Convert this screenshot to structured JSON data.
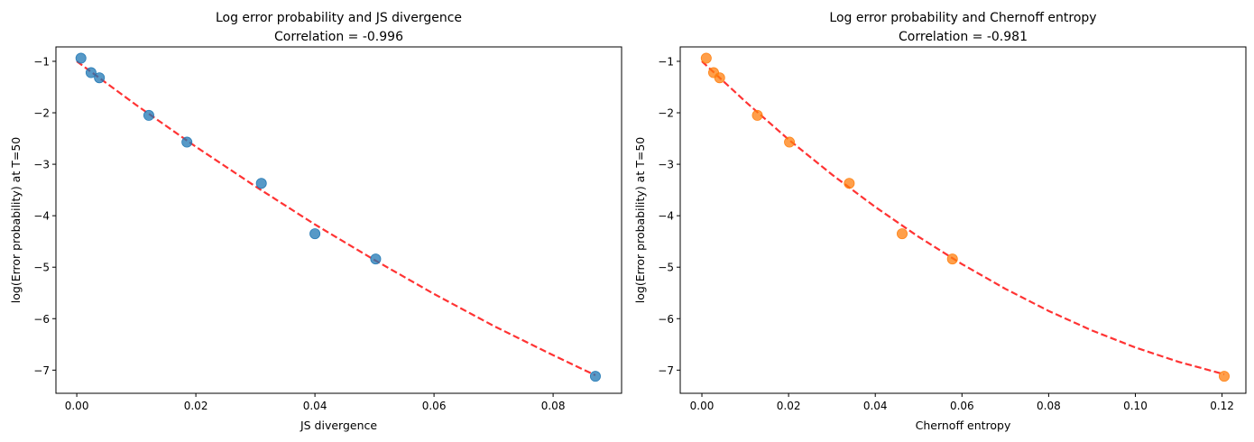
{
  "chart_data": [
    {
      "type": "scatter",
      "title": "Log error probability and JS divergence",
      "subtitle": "Correlation = -0.996",
      "xlabel": "JS divergence",
      "ylabel": "log(Error probability) at T=50",
      "xlim": [
        -0.0035,
        0.0915
      ],
      "ylim": [
        -7.45,
        -0.72
      ],
      "xticks": [
        0.0,
        0.02,
        0.04,
        0.06,
        0.08
      ],
      "xtick_labels": [
        "0.00",
        "0.02",
        "0.04",
        "0.06",
        "0.08"
      ],
      "yticks": [
        -7,
        -6,
        -5,
        -4,
        -3,
        -2,
        -1
      ],
      "ytick_labels": [
        "−7",
        "−6",
        "−5",
        "−4",
        "−3",
        "−2",
        "−1"
      ],
      "grid": false,
      "colors": {
        "points": "#1f77b4",
        "fit": "#ff0000"
      },
      "points": {
        "x": [
          0.0007,
          0.0024,
          0.0038,
          0.0121,
          0.0185,
          0.031,
          0.04,
          0.0502,
          0.0871
        ],
        "y": [
          -0.94,
          -1.22,
          -1.32,
          -2.05,
          -2.57,
          -3.37,
          -4.35,
          -4.84,
          -7.12
        ]
      },
      "fit": {
        "style": "dashed",
        "x": [
          0.0,
          0.01,
          0.02,
          0.03,
          0.04,
          0.05,
          0.06,
          0.07,
          0.08,
          0.0871
        ],
        "y": [
          -1.0,
          -1.85,
          -2.66,
          -3.43,
          -4.17,
          -4.86,
          -5.52,
          -6.14,
          -6.71,
          -7.1
        ]
      }
    },
    {
      "type": "scatter",
      "title": "Log error probability and Chernoff entropy",
      "subtitle": "Correlation = -0.981",
      "xlabel": "Chernoff entropy",
      "ylabel": "log(Error probability) at T=50",
      "xlim": [
        -0.005,
        0.1255
      ],
      "ylim": [
        -7.45,
        -0.72
      ],
      "xticks": [
        0.0,
        0.02,
        0.04,
        0.06,
        0.08,
        0.1,
        0.12
      ],
      "xtick_labels": [
        "0.00",
        "0.02",
        "0.04",
        "0.06",
        "0.08",
        "0.10",
        "0.12"
      ],
      "yticks": [
        -7,
        -6,
        -5,
        -4,
        -3,
        -2,
        -1
      ],
      "ytick_labels": [
        "−7",
        "−6",
        "−5",
        "−4",
        "−3",
        "−2",
        "−1"
      ],
      "grid": false,
      "colors": {
        "points": "#ff7f0e",
        "fit": "#ff0000"
      },
      "points": {
        "x": [
          0.001,
          0.0027,
          0.0041,
          0.0128,
          0.0202,
          0.034,
          0.0462,
          0.0578,
          0.1205
        ],
        "y": [
          -0.94,
          -1.22,
          -1.32,
          -2.05,
          -2.57,
          -3.37,
          -4.35,
          -4.84,
          -7.12
        ]
      },
      "fit": {
        "style": "dashed",
        "x": [
          0.0,
          0.01,
          0.02,
          0.03,
          0.04,
          0.05,
          0.06,
          0.07,
          0.08,
          0.09,
          0.1,
          0.11,
          0.1205
        ],
        "y": [
          -1.0,
          -1.78,
          -2.52,
          -3.2,
          -3.83,
          -4.41,
          -4.94,
          -5.42,
          -5.85,
          -6.23,
          -6.56,
          -6.84,
          -7.08
        ]
      }
    }
  ]
}
